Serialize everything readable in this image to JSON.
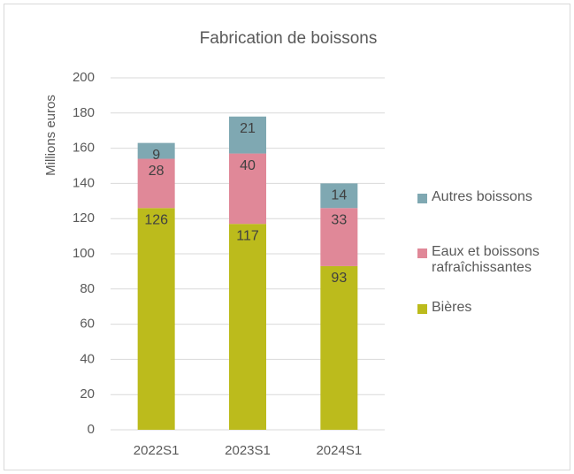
{
  "chart_data": {
    "type": "stacked_bar",
    "title": "Fabrication de boissons",
    "y_label": "Millions euros",
    "categories": [
      "2022S1",
      "2023S1",
      "2024S1"
    ],
    "series": [
      {
        "name": "Bières",
        "color": "#bcbb1c",
        "values": [
          126,
          117,
          93
        ]
      },
      {
        "name": "Eaux et boissons rafraîchissantes",
        "color": "#e08898",
        "values": [
          28,
          40,
          33
        ]
      },
      {
        "name": "Autres boissons",
        "color": "#7fa8b2",
        "values": [
          9,
          21,
          14
        ]
      }
    ],
    "ylim": [
      0,
      200
    ],
    "yticks": [
      0,
      20,
      40,
      60,
      80,
      100,
      120,
      140,
      160,
      180,
      200
    ],
    "grid": true,
    "legend": "right"
  }
}
